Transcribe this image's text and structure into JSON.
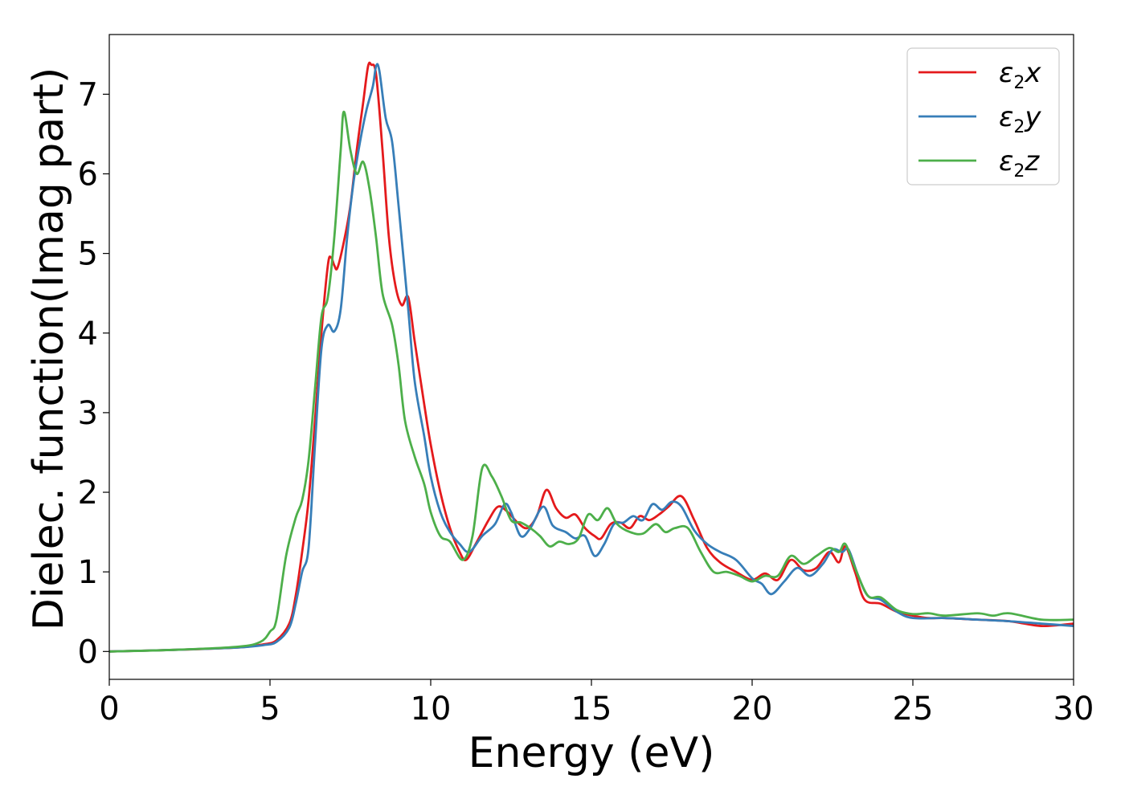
{
  "chart_data": {
    "type": "line",
    "title": "",
    "xlabel": "Energy (eV)",
    "ylabel": "Dielec. function(Imag part)",
    "xlim": [
      0,
      30
    ],
    "ylim": [
      -0.35,
      7.75
    ],
    "xticks": [
      0,
      5,
      10,
      15,
      20,
      25,
      30
    ],
    "yticks": [
      0,
      1,
      2,
      3,
      4,
      5,
      6,
      7
    ],
    "grid": false,
    "legend_position": "top-right",
    "legend_symbol": "ε",
    "legend_subscript": "2",
    "series": [
      {
        "name": "x",
        "color": "#e41a1c",
        "points": [
          [
            0,
            0.0
          ],
          [
            2,
            0.02
          ],
          [
            4,
            0.05
          ],
          [
            4.8,
            0.09
          ],
          [
            5.2,
            0.14
          ],
          [
            5.6,
            0.35
          ],
          [
            5.8,
            0.7
          ],
          [
            6.0,
            1.25
          ],
          [
            6.2,
            1.9
          ],
          [
            6.4,
            2.9
          ],
          [
            6.6,
            4.0
          ],
          [
            6.8,
            4.85
          ],
          [
            6.9,
            4.95
          ],
          [
            7.0,
            4.85
          ],
          [
            7.1,
            4.82
          ],
          [
            7.3,
            5.15
          ],
          [
            7.5,
            5.6
          ],
          [
            7.7,
            6.3
          ],
          [
            7.9,
            6.9
          ],
          [
            8.05,
            7.35
          ],
          [
            8.15,
            7.37
          ],
          [
            8.3,
            7.25
          ],
          [
            8.5,
            6.3
          ],
          [
            8.7,
            5.2
          ],
          [
            8.9,
            4.6
          ],
          [
            9.1,
            4.35
          ],
          [
            9.3,
            4.45
          ],
          [
            9.5,
            3.9
          ],
          [
            9.8,
            3.1
          ],
          [
            10.0,
            2.6
          ],
          [
            10.3,
            2.0
          ],
          [
            10.6,
            1.55
          ],
          [
            10.9,
            1.25
          ],
          [
            11.1,
            1.15
          ],
          [
            11.4,
            1.35
          ],
          [
            11.8,
            1.65
          ],
          [
            12.1,
            1.82
          ],
          [
            12.4,
            1.75
          ],
          [
            12.7,
            1.62
          ],
          [
            13.0,
            1.55
          ],
          [
            13.3,
            1.7
          ],
          [
            13.6,
            2.03
          ],
          [
            13.9,
            1.8
          ],
          [
            14.2,
            1.68
          ],
          [
            14.5,
            1.72
          ],
          [
            14.8,
            1.55
          ],
          [
            15.1,
            1.45
          ],
          [
            15.3,
            1.42
          ],
          [
            15.6,
            1.6
          ],
          [
            15.9,
            1.62
          ],
          [
            16.2,
            1.55
          ],
          [
            16.5,
            1.7
          ],
          [
            16.8,
            1.65
          ],
          [
            17.1,
            1.72
          ],
          [
            17.4,
            1.82
          ],
          [
            17.8,
            1.95
          ],
          [
            18.2,
            1.65
          ],
          [
            18.6,
            1.3
          ],
          [
            19.0,
            1.12
          ],
          [
            19.5,
            1.0
          ],
          [
            20.0,
            0.9
          ],
          [
            20.4,
            0.98
          ],
          [
            20.8,
            0.9
          ],
          [
            21.2,
            1.15
          ],
          [
            21.6,
            1.02
          ],
          [
            22.0,
            1.05
          ],
          [
            22.4,
            1.25
          ],
          [
            22.7,
            1.12
          ],
          [
            22.9,
            1.32
          ],
          [
            23.2,
            1.0
          ],
          [
            23.5,
            0.65
          ],
          [
            24.0,
            0.6
          ],
          [
            24.5,
            0.5
          ],
          [
            25.0,
            0.45
          ],
          [
            25.5,
            0.42
          ],
          [
            26.0,
            0.42
          ],
          [
            27.0,
            0.4
          ],
          [
            28.0,
            0.38
          ],
          [
            29.0,
            0.32
          ],
          [
            30.0,
            0.35
          ]
        ]
      },
      {
        "name": "y",
        "color": "#377eb8",
        "points": [
          [
            0,
            0.0
          ],
          [
            2,
            0.02
          ],
          [
            4,
            0.05
          ],
          [
            4.8,
            0.08
          ],
          [
            5.2,
            0.12
          ],
          [
            5.6,
            0.3
          ],
          [
            5.8,
            0.6
          ],
          [
            6.0,
            1.0
          ],
          [
            6.2,
            1.3
          ],
          [
            6.4,
            2.6
          ],
          [
            6.6,
            3.8
          ],
          [
            6.8,
            4.1
          ],
          [
            7.0,
            4.02
          ],
          [
            7.2,
            4.3
          ],
          [
            7.4,
            5.2
          ],
          [
            7.6,
            5.9
          ],
          [
            7.8,
            6.4
          ],
          [
            8.0,
            6.8
          ],
          [
            8.2,
            7.1
          ],
          [
            8.3,
            7.35
          ],
          [
            8.4,
            7.3
          ],
          [
            8.6,
            6.7
          ],
          [
            8.8,
            6.4
          ],
          [
            9.0,
            5.6
          ],
          [
            9.3,
            4.3
          ],
          [
            9.5,
            3.4
          ],
          [
            9.8,
            2.7
          ],
          [
            10.0,
            2.2
          ],
          [
            10.3,
            1.75
          ],
          [
            10.6,
            1.5
          ],
          [
            10.9,
            1.35
          ],
          [
            11.2,
            1.25
          ],
          [
            11.6,
            1.45
          ],
          [
            12.0,
            1.6
          ],
          [
            12.3,
            1.85
          ],
          [
            12.5,
            1.75
          ],
          [
            12.8,
            1.45
          ],
          [
            13.1,
            1.55
          ],
          [
            13.5,
            1.82
          ],
          [
            13.8,
            1.58
          ],
          [
            14.2,
            1.5
          ],
          [
            14.5,
            1.42
          ],
          [
            14.8,
            1.45
          ],
          [
            15.1,
            1.2
          ],
          [
            15.4,
            1.35
          ],
          [
            15.7,
            1.6
          ],
          [
            16.0,
            1.62
          ],
          [
            16.3,
            1.7
          ],
          [
            16.6,
            1.65
          ],
          [
            16.9,
            1.85
          ],
          [
            17.2,
            1.78
          ],
          [
            17.5,
            1.88
          ],
          [
            17.8,
            1.82
          ],
          [
            18.2,
            1.52
          ],
          [
            18.6,
            1.35
          ],
          [
            19.0,
            1.25
          ],
          [
            19.5,
            1.15
          ],
          [
            20.0,
            0.92
          ],
          [
            20.3,
            0.85
          ],
          [
            20.6,
            0.72
          ],
          [
            21.0,
            0.88
          ],
          [
            21.4,
            1.05
          ],
          [
            21.8,
            0.95
          ],
          [
            22.2,
            1.1
          ],
          [
            22.5,
            1.28
          ],
          [
            22.8,
            1.25
          ],
          [
            23.0,
            1.28
          ],
          [
            23.3,
            0.95
          ],
          [
            23.6,
            0.7
          ],
          [
            24.0,
            0.65
          ],
          [
            24.5,
            0.5
          ],
          [
            25.0,
            0.42
          ],
          [
            26.0,
            0.42
          ],
          [
            27.0,
            0.4
          ],
          [
            28.0,
            0.38
          ],
          [
            29.0,
            0.35
          ],
          [
            30.0,
            0.32
          ]
        ]
      },
      {
        "name": "z",
        "color": "#4daf4a",
        "points": [
          [
            0,
            0.0
          ],
          [
            2,
            0.02
          ],
          [
            4,
            0.06
          ],
          [
            4.7,
            0.12
          ],
          [
            5.0,
            0.25
          ],
          [
            5.2,
            0.4
          ],
          [
            5.5,
            1.2
          ],
          [
            5.8,
            1.68
          ],
          [
            6.0,
            1.9
          ],
          [
            6.2,
            2.4
          ],
          [
            6.4,
            3.3
          ],
          [
            6.6,
            4.2
          ],
          [
            6.8,
            4.45
          ],
          [
            7.0,
            5.2
          ],
          [
            7.2,
            6.3
          ],
          [
            7.3,
            6.78
          ],
          [
            7.5,
            6.3
          ],
          [
            7.7,
            6.0
          ],
          [
            7.9,
            6.15
          ],
          [
            8.1,
            5.8
          ],
          [
            8.3,
            5.2
          ],
          [
            8.5,
            4.5
          ],
          [
            8.8,
            4.1
          ],
          [
            9.0,
            3.6
          ],
          [
            9.2,
            2.9
          ],
          [
            9.5,
            2.45
          ],
          [
            9.8,
            2.1
          ],
          [
            10.0,
            1.75
          ],
          [
            10.3,
            1.45
          ],
          [
            10.6,
            1.38
          ],
          [
            11.0,
            1.15
          ],
          [
            11.3,
            1.45
          ],
          [
            11.6,
            2.3
          ],
          [
            11.9,
            2.2
          ],
          [
            12.2,
            1.95
          ],
          [
            12.5,
            1.65
          ],
          [
            12.8,
            1.62
          ],
          [
            13.1,
            1.55
          ],
          [
            13.4,
            1.45
          ],
          [
            13.7,
            1.32
          ],
          [
            14.0,
            1.38
          ],
          [
            14.3,
            1.35
          ],
          [
            14.6,
            1.42
          ],
          [
            14.9,
            1.72
          ],
          [
            15.2,
            1.65
          ],
          [
            15.5,
            1.8
          ],
          [
            15.8,
            1.6
          ],
          [
            16.2,
            1.5
          ],
          [
            16.6,
            1.48
          ],
          [
            17.0,
            1.6
          ],
          [
            17.3,
            1.5
          ],
          [
            17.6,
            1.55
          ],
          [
            18.0,
            1.55
          ],
          [
            18.4,
            1.25
          ],
          [
            18.8,
            1.0
          ],
          [
            19.2,
            1.0
          ],
          [
            19.6,
            0.95
          ],
          [
            20.0,
            0.88
          ],
          [
            20.4,
            0.95
          ],
          [
            20.8,
            0.95
          ],
          [
            21.2,
            1.2
          ],
          [
            21.6,
            1.1
          ],
          [
            22.0,
            1.2
          ],
          [
            22.4,
            1.3
          ],
          [
            22.7,
            1.25
          ],
          [
            22.9,
            1.35
          ],
          [
            23.2,
            1.05
          ],
          [
            23.6,
            0.7
          ],
          [
            24.0,
            0.68
          ],
          [
            24.5,
            0.52
          ],
          [
            25.0,
            0.47
          ],
          [
            25.5,
            0.48
          ],
          [
            26.0,
            0.45
          ],
          [
            27.0,
            0.48
          ],
          [
            27.5,
            0.45
          ],
          [
            28.0,
            0.48
          ],
          [
            29.0,
            0.4
          ],
          [
            30.0,
            0.4
          ]
        ]
      }
    ]
  }
}
